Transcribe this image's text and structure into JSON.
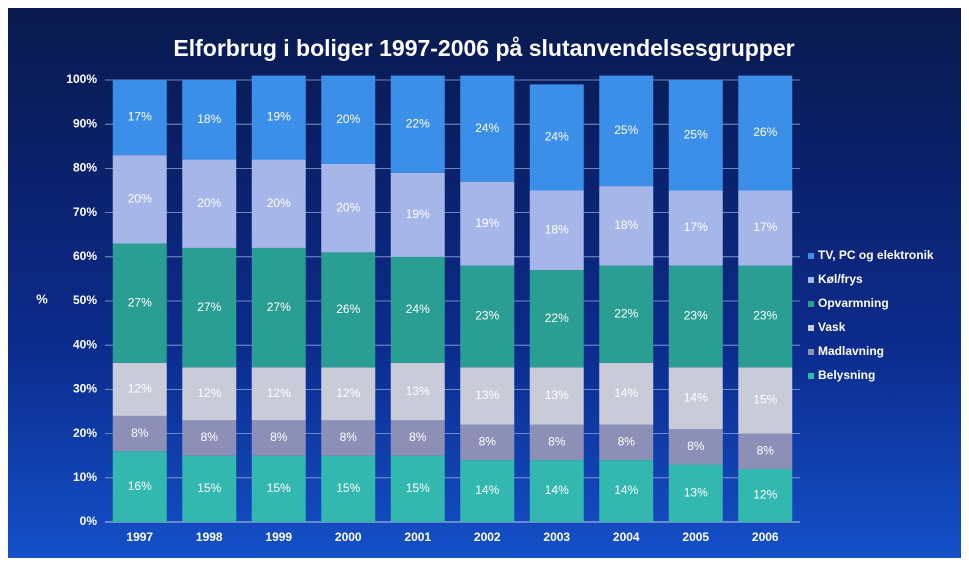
{
  "chart_data": {
    "type": "stacked_bar",
    "title": "Elforbrug i boliger 1997-2006 på slutanvendelsesgrupper",
    "y_label": "%",
    "categories": [
      "1997",
      "1998",
      "1999",
      "2000",
      "2001",
      "2002",
      "2003",
      "2004",
      "2005",
      "2006"
    ],
    "ylim": [
      0,
      100
    ],
    "yticks": [
      {
        "value": 0,
        "label": "0%"
      },
      {
        "value": 10,
        "label": "10%"
      },
      {
        "value": 20,
        "label": "20%"
      },
      {
        "value": 30,
        "label": "30%"
      },
      {
        "value": 40,
        "label": "40%"
      },
      {
        "value": 50,
        "label": "50%"
      },
      {
        "value": 60,
        "label": "60%"
      },
      {
        "value": 70,
        "label": "70%"
      },
      {
        "value": 80,
        "label": "80%"
      },
      {
        "value": 90,
        "label": "90%"
      },
      {
        "value": 100,
        "label": "100%"
      }
    ],
    "grid": true,
    "legend": "right",
    "series": [
      {
        "name": "Belysning",
        "color": "#33b8b0",
        "values": [
          16,
          15,
          15,
          15,
          15,
          14,
          14,
          14,
          13,
          12
        ],
        "value_labels": [
          "16%",
          "15%",
          "15%",
          "15%",
          "15%",
          "14%",
          "14%",
          "14%",
          "13%",
          "12%"
        ]
      },
      {
        "name": "Madlavning",
        "color": "#8d90b6",
        "values": [
          8,
          8,
          8,
          8,
          8,
          8,
          8,
          8,
          8,
          8
        ],
        "value_labels": [
          "8%",
          "8%",
          "8%",
          "8%",
          "8%",
          "8%",
          "8%",
          "8%",
          "8%",
          "8%"
        ]
      },
      {
        "name": "Vask",
        "color": "#c9ccd8",
        "values": [
          12,
          12,
          12,
          12,
          13,
          13,
          13,
          14,
          14,
          15
        ],
        "value_labels": [
          "12%",
          "12%",
          "12%",
          "12%",
          "13%",
          "13%",
          "13%",
          "14%",
          "14%",
          "15%"
        ]
      },
      {
        "name": "Opvarmning",
        "color": "#2a9e92",
        "values": [
          27,
          27,
          27,
          26,
          24,
          23,
          22,
          22,
          23,
          23
        ],
        "value_labels": [
          "27%",
          "27%",
          "27%",
          "26%",
          "24%",
          "23%",
          "22%",
          "22%",
          "23%",
          "23%"
        ]
      },
      {
        "name": "Køl/frys",
        "color": "#a6b6e8",
        "values": [
          20,
          20,
          20,
          20,
          19,
          19,
          18,
          18,
          17,
          17
        ],
        "value_labels": [
          "20%",
          "20%",
          "20%",
          "20%",
          "19%",
          "19%",
          "18%",
          "18%",
          "17%",
          "17%"
        ]
      },
      {
        "name": "TV, PC og elektronik",
        "color": "#3b8fe8",
        "values": [
          17,
          18,
          19,
          20,
          22,
          24,
          24,
          25,
          25,
          26
        ],
        "value_labels": [
          "17%",
          "18%",
          "19%",
          "20%",
          "22%",
          "24%",
          "24%",
          "25%",
          "25%",
          "26%"
        ]
      }
    ]
  }
}
